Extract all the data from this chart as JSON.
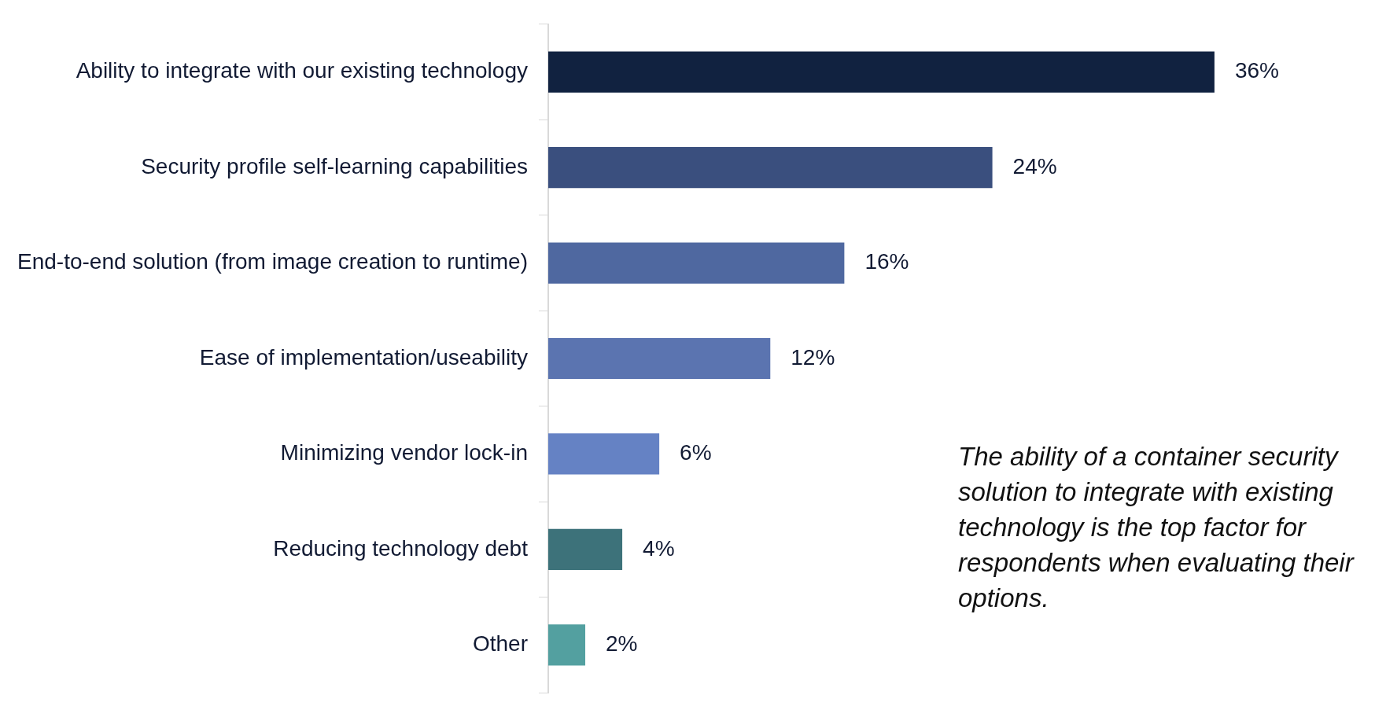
{
  "chart_data": {
    "type": "bar",
    "orientation": "horizontal",
    "categories": [
      "Ability to integrate with our existing technology",
      "Security profile self-learning capabilities",
      "End-to-end solution (from image creation to runtime)",
      "Ease of implementation/useability",
      "Minimizing vendor lock-in",
      "Reducing technology debt",
      "Other"
    ],
    "values": [
      36,
      24,
      16,
      12,
      6,
      4,
      2
    ],
    "value_labels": [
      "36%",
      "24%",
      "16%",
      "12%",
      "6%",
      "4%",
      "2%"
    ],
    "colors": [
      "#112240",
      "#3a4f7e",
      "#4f68a0",
      "#5b74b0",
      "#6582c4",
      "#3d727a",
      "#53a0a0"
    ],
    "annotations": [
      "The ability of a container security solution to integrate with existing technology is the top factor for respondents when evaluating their options."
    ],
    "grid": false,
    "legend": false
  }
}
